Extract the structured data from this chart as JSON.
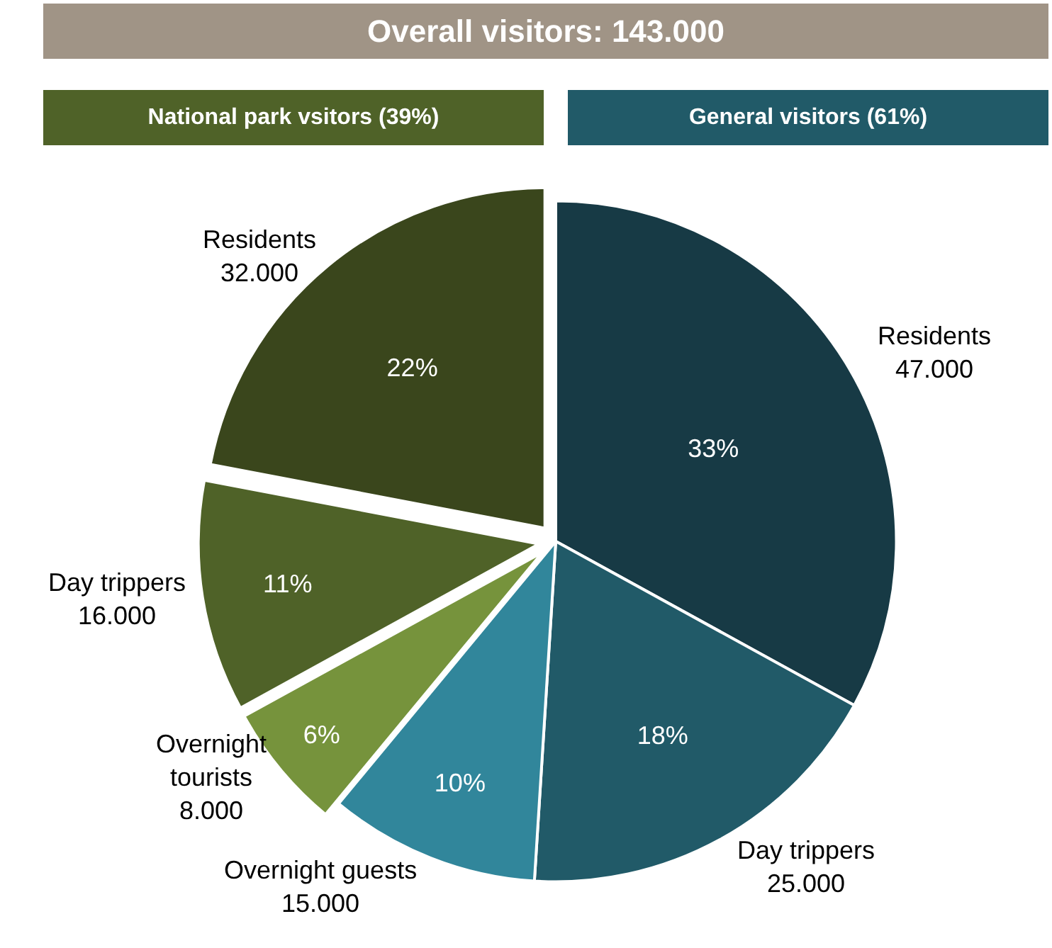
{
  "chart_data": {
    "type": "pie",
    "title": "Overall visitors: 143.000",
    "annotations": [
      "National park vsitors (39%)",
      "General visitors (61%)"
    ],
    "categories": [
      "Residents\n47.000",
      "Day trippers\n25.000",
      "Overnight guests\n15.000",
      "Overnight\ntourists\n8.000",
      "Day trippers\n16.000",
      "Residents\n32.000"
    ],
    "values": [
      33,
      18,
      10,
      6,
      11,
      22
    ],
    "value_labels": [
      "33%",
      "18%",
      "10%",
      "6%",
      "11%",
      "22%"
    ],
    "colors": [
      "#173a45",
      "#215a68",
      "#31869b",
      "#76933c",
      "#4f6228",
      "#3a461c"
    ]
  }
}
